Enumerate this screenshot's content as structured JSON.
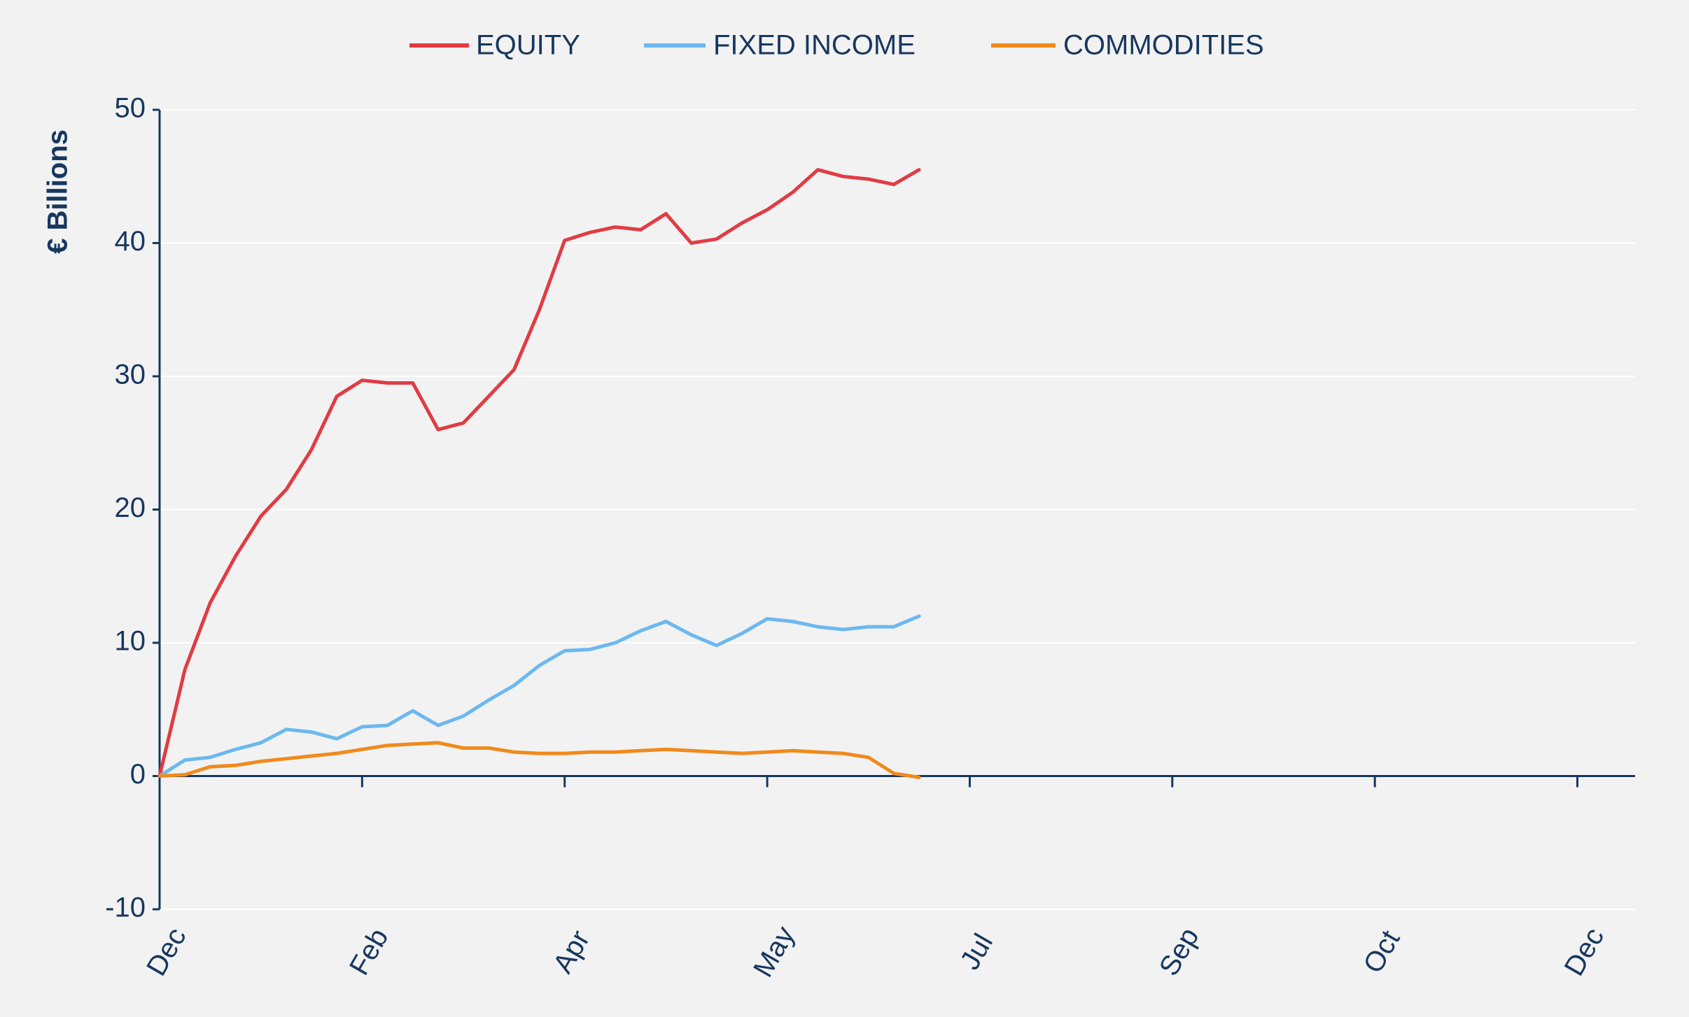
{
  "chart_data": {
    "type": "line",
    "y_label": "€ Billions",
    "categories": [
      "Dec",
      null,
      null,
      null,
      null,
      null,
      null,
      null,
      "Feb",
      null,
      null,
      null,
      null,
      null,
      null,
      null,
      "Apr",
      null,
      null,
      null,
      null,
      null,
      null,
      null,
      "May",
      null,
      null,
      null,
      null,
      null,
      null,
      null,
      "Jul",
      null,
      null,
      null,
      null,
      null,
      null,
      null,
      "Sep",
      null,
      null,
      null,
      null,
      null,
      null,
      null,
      "Oct",
      null,
      null,
      null,
      null,
      null,
      null,
      null,
      "Dec"
    ],
    "series": [
      {
        "name": "EQUITY",
        "color": "#e03c44",
        "values": [
          0,
          8,
          13,
          16.5,
          19.5,
          21.5,
          24.5,
          28.5,
          29.7,
          29.5,
          29.5,
          26,
          26.5,
          28.5,
          30.5,
          35,
          40.2,
          40.8,
          41.2,
          41,
          42.2,
          40,
          40.3,
          41.5,
          42.5,
          43.8,
          45.5,
          45,
          44.8,
          44.4,
          45.5,
          null,
          null,
          null,
          null,
          null,
          null,
          null,
          null,
          null,
          null,
          null,
          null,
          null,
          null,
          null,
          null,
          null,
          null,
          null,
          null,
          null,
          null,
          null,
          null,
          null,
          null
        ]
      },
      {
        "name": "FIXED INCOME",
        "color": "#6cb8f0",
        "values": [
          0,
          1.2,
          1.4,
          2,
          2.5,
          3.5,
          3.3,
          2.8,
          3.7,
          3.8,
          4.9,
          3.8,
          4.5,
          5.7,
          6.8,
          8.3,
          9.4,
          9.5,
          10,
          10.9,
          11.6,
          10.6,
          9.8,
          10.7,
          11.8,
          11.6,
          11.2,
          11,
          11.2,
          11.2,
          12,
          null,
          null,
          null,
          null,
          null,
          null,
          null,
          null,
          null,
          null,
          null,
          null,
          null,
          null,
          null,
          null,
          null,
          null,
          null,
          null,
          null,
          null,
          null,
          null,
          null,
          null
        ]
      },
      {
        "name": "COMMODITIES",
        "color": "#f08a1c",
        "values": [
          0,
          0.1,
          0.7,
          0.8,
          1.1,
          1.3,
          1.5,
          1.7,
          2,
          2.3,
          2.4,
          2.5,
          2.1,
          2.1,
          1.8,
          1.7,
          1.7,
          1.8,
          1.8,
          1.9,
          2,
          1.9,
          1.8,
          1.7,
          1.8,
          1.9,
          1.8,
          1.7,
          1.4,
          0.2,
          -0.1,
          null,
          null,
          null,
          null,
          null,
          null,
          null,
          null,
          null,
          null,
          null,
          null,
          null,
          null,
          null,
          null,
          null,
          null,
          null,
          null,
          null,
          null,
          null,
          null,
          null,
          null
        ]
      }
    ],
    "ylim": [
      -10,
      50
    ],
    "yticks": [
      -10,
      0,
      10,
      20,
      30,
      40,
      50
    ],
    "grid": true
  }
}
